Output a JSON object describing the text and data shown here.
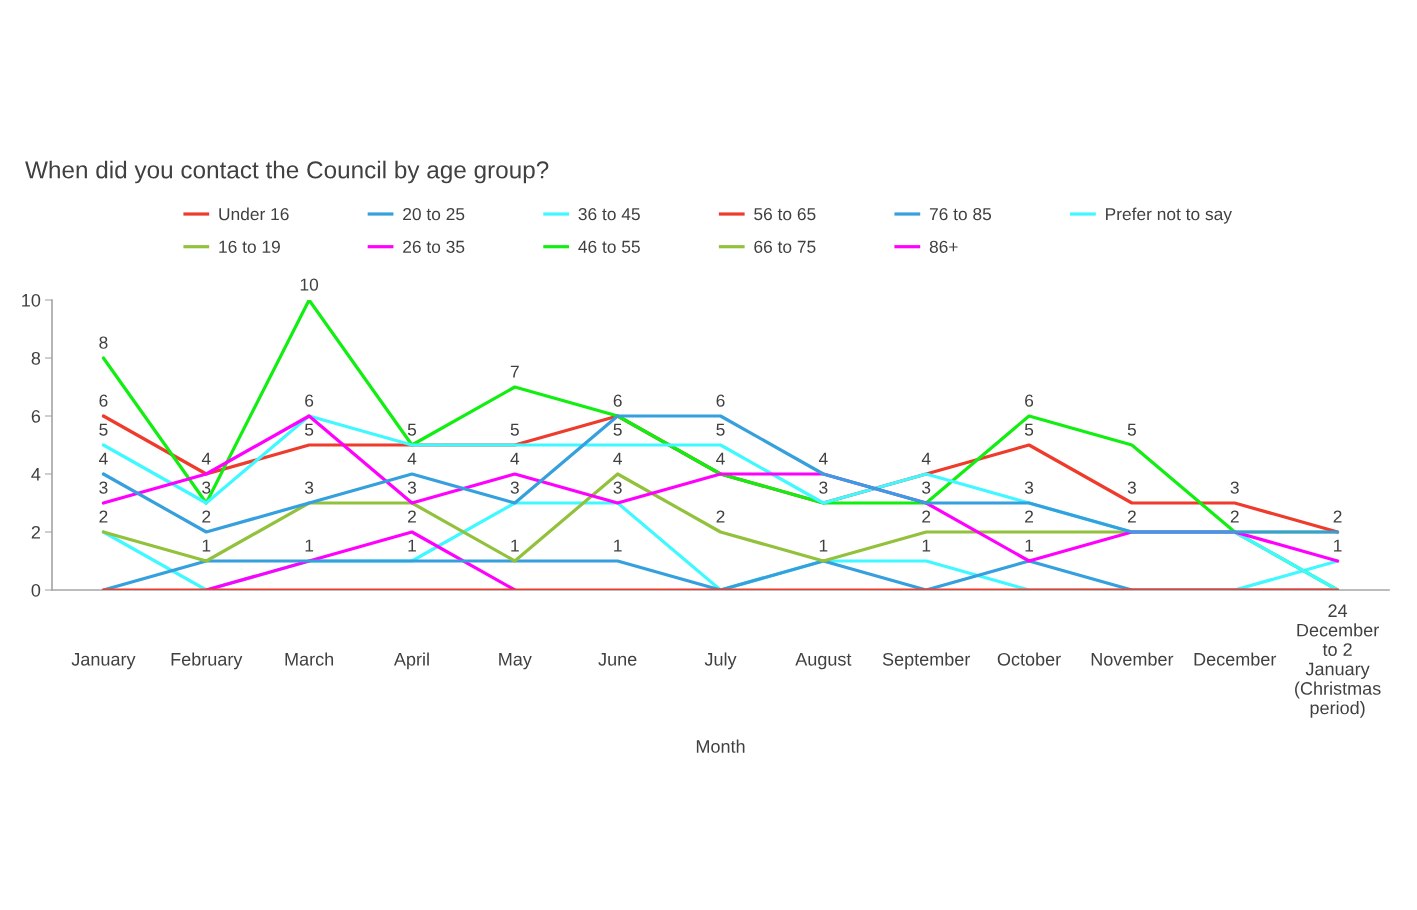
{
  "chart_data": {
    "type": "line",
    "title": "When did you contact the Council by age group?",
    "xlabel": "Month",
    "categories": [
      "January",
      "February",
      "March",
      "April",
      "May",
      "June",
      "July",
      "August",
      "September",
      "October",
      "November",
      "December",
      "24 December to 2 January (Christmas period)"
    ],
    "ylim": [
      0,
      10
    ],
    "yticks": [
      0,
      2,
      4,
      6,
      8,
      10
    ],
    "grid": false,
    "legend": "top",
    "line_style": "solid",
    "series": [
      {
        "name": "Under 16",
        "color": "#ee3b2b",
        "values": [
          0,
          0,
          0,
          0,
          0,
          0,
          0,
          0,
          0,
          0,
          0,
          0,
          0
        ]
      },
      {
        "name": "16 to 19",
        "color": "#92c13c",
        "values": [
          null,
          null,
          null,
          null,
          null,
          null,
          null,
          null,
          null,
          null,
          null,
          null,
          null
        ]
      },
      {
        "name": "20 to 25",
        "color": "#35a0dd",
        "values": [
          4,
          2,
          3,
          4,
          3,
          6,
          6,
          4,
          3,
          3,
          2,
          2,
          2
        ],
        "value_labels": [
          "4",
          "2",
          "3",
          "4",
          "3",
          "6",
          "6",
          "4",
          "3",
          "3",
          "2",
          "2",
          "2"
        ]
      },
      {
        "name": "26 to 35",
        "color": "#ff00ff",
        "values": [
          3,
          4,
          6,
          3,
          4,
          3,
          4,
          4,
          3,
          1,
          2,
          2,
          1
        ],
        "value_labels": [
          "3",
          "4",
          "6",
          "3",
          "4",
          "3",
          "4",
          null,
          null,
          "1",
          null,
          null,
          "1"
        ]
      },
      {
        "name": "36 to 45",
        "color": "#40f8ff",
        "values": [
          5,
          3,
          6,
          5,
          5,
          5,
          5,
          3,
          4,
          3,
          2,
          2,
          0
        ],
        "value_labels": [
          "5",
          "3",
          null,
          "5",
          "5",
          "5",
          "5",
          "3",
          "4",
          null,
          null,
          null,
          null
        ]
      },
      {
        "name": "46 to 55",
        "color": "#11ee11",
        "values": [
          8,
          3,
          10,
          5,
          7,
          6,
          4,
          3,
          3,
          6,
          5,
          2,
          0
        ],
        "value_labels": [
          "8",
          null,
          "10",
          null,
          "7",
          null,
          null,
          null,
          null,
          "6",
          "5",
          null,
          null
        ]
      },
      {
        "name": "56 to 65",
        "color": "#ee3b2b",
        "values": [
          6,
          4,
          5,
          5,
          5,
          6,
          4,
          3,
          4,
          5,
          3,
          3,
          2
        ],
        "value_labels": [
          "6",
          null,
          "5",
          null,
          null,
          null,
          null,
          null,
          null,
          "5",
          "3",
          "3",
          null
        ]
      },
      {
        "name": "66 to 75",
        "color": "#92c13c",
        "values": [
          2,
          1,
          3,
          3,
          1,
          4,
          2,
          1,
          2,
          2,
          2,
          2,
          2
        ],
        "value_labels": [
          "2",
          "1",
          null,
          null,
          "1",
          "4",
          "2",
          "1",
          "2",
          "2",
          null,
          null,
          null
        ]
      },
      {
        "name": "76 to 85",
        "color": "#35a0dd",
        "values": [
          0,
          1,
          1,
          1,
          1,
          1,
          0,
          1,
          0,
          1,
          0,
          0,
          0
        ],
        "value_labels": [
          null,
          null,
          "1",
          "1",
          null,
          "1",
          null,
          null,
          null,
          null,
          null,
          null,
          null
        ]
      },
      {
        "name": "86+",
        "color": "#ff00ff",
        "values": [
          null,
          0,
          1,
          2,
          0,
          null,
          null,
          null,
          null,
          null,
          null,
          null,
          null
        ],
        "value_labels": [
          null,
          null,
          null,
          "2",
          null,
          null,
          null,
          null,
          null,
          null,
          null,
          null,
          null
        ]
      },
      {
        "name": "Prefer not to say",
        "color": "#40f8ff",
        "values": [
          2,
          0,
          1,
          1,
          3,
          3,
          0,
          1,
          1,
          0,
          0,
          0,
          1
        ],
        "value_labels": [
          null,
          null,
          null,
          null,
          null,
          null,
          null,
          null,
          "1",
          null,
          null,
          null,
          null
        ]
      }
    ]
  }
}
